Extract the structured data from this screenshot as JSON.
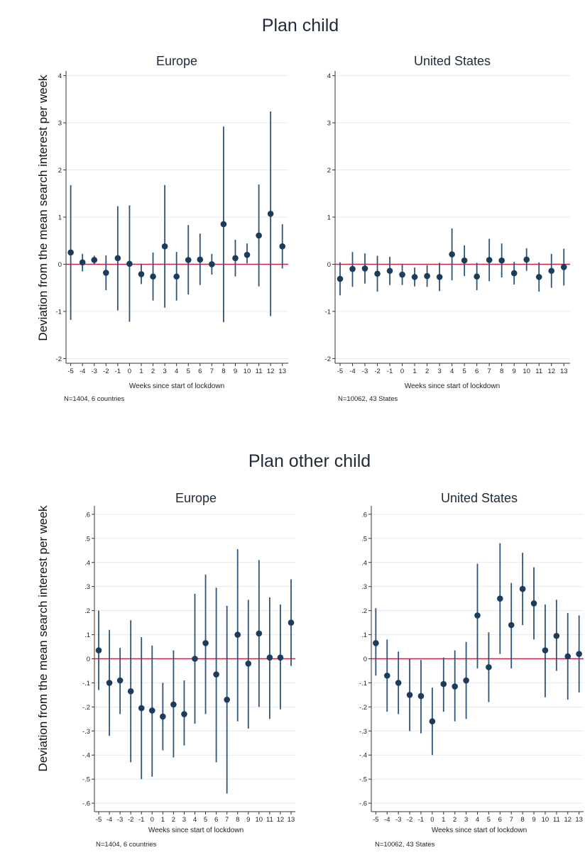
{
  "figure": {
    "sections": [
      {
        "title": "Plan child",
        "ylabel": "Deviation from the mean search interest per week"
      },
      {
        "title": "Plan other child",
        "ylabel": "Deviation from the mean search interest per week"
      }
    ]
  },
  "colors": {
    "marker": "#1c3c5c",
    "ci": "#2e5478",
    "zero_line": "#c0284a",
    "grid": "#e4e9ef",
    "axis": "#333333"
  },
  "chart_data": [
    {
      "type": "scatter",
      "section": 0,
      "title": "Europe",
      "xlabel": "Weeks since start of lockdown",
      "ylabel": "Deviation from the mean search interest per week",
      "note": "N=1404, 6 countries",
      "x": [
        -5,
        -4,
        -3,
        -2,
        -1,
        0,
        1,
        2,
        3,
        4,
        5,
        6,
        7,
        8,
        9,
        10,
        11,
        12,
        13
      ],
      "estimate": [
        0.25,
        0.04,
        0.09,
        -0.18,
        0.13,
        0.01,
        -0.21,
        -0.26,
        0.38,
        -0.26,
        0.09,
        0.1,
        0.0,
        0.85,
        0.13,
        0.2,
        0.61,
        1.07,
        0.38
      ],
      "ci_low": [
        -1.18,
        -0.15,
        -0.01,
        -0.55,
        -0.98,
        -1.22,
        -0.42,
        -0.77,
        -0.92,
        -0.77,
        -0.64,
        -0.44,
        -0.22,
        -1.23,
        -0.26,
        0.02,
        -0.47,
        -1.1,
        -0.09
      ],
      "ci_high": [
        1.68,
        0.22,
        0.18,
        0.19,
        1.23,
        1.25,
        0.01,
        0.25,
        1.68,
        0.26,
        0.83,
        0.65,
        0.22,
        2.92,
        0.52,
        0.44,
        1.69,
        3.24,
        0.85
      ],
      "yticks": [
        -2,
        -1,
        0,
        1,
        2,
        3,
        4
      ],
      "ytick_labels": [
        "-2",
        "-1",
        "0",
        "1",
        "2",
        "3",
        "4"
      ],
      "xtick_labels": [
        "-5",
        "-4",
        "-3",
        "-2",
        "-1",
        "0",
        "1",
        "2",
        "3",
        "4",
        "5",
        "6",
        "7",
        "8",
        "9",
        "10",
        "11",
        "12",
        "13"
      ],
      "ylim": [
        -2.1,
        4.1
      ],
      "xlim": [
        -5.4,
        13.5
      ],
      "grid": true,
      "reference_line": 0
    },
    {
      "type": "scatter",
      "section": 0,
      "title": "United States",
      "xlabel": "Weeks since start of lockdown",
      "ylabel": "",
      "note": "N=10062, 43 States",
      "x": [
        -5,
        -4,
        -3,
        -2,
        -1,
        0,
        1,
        2,
        3,
        4,
        5,
        6,
        7,
        8,
        9,
        10,
        11,
        12,
        13
      ],
      "estimate": [
        -0.31,
        -0.1,
        -0.09,
        -0.2,
        -0.14,
        -0.22,
        -0.27,
        -0.25,
        -0.27,
        0.21,
        0.08,
        -0.26,
        0.09,
        0.08,
        -0.19,
        0.1,
        -0.27,
        -0.14,
        -0.06
      ],
      "ci_low": [
        -0.66,
        -0.48,
        -0.41,
        -0.58,
        -0.44,
        -0.44,
        -0.47,
        -0.48,
        -0.57,
        -0.34,
        -0.25,
        -0.55,
        -0.36,
        -0.28,
        -0.43,
        -0.14,
        -0.58,
        -0.5,
        -0.45
      ],
      "ci_high": [
        0.04,
        0.26,
        0.23,
        0.18,
        0.16,
        0.0,
        -0.07,
        -0.02,
        0.03,
        0.76,
        0.4,
        0.03,
        0.54,
        0.44,
        0.05,
        0.34,
        0.04,
        0.22,
        0.33
      ],
      "yticks": [
        -2,
        -1,
        0,
        1,
        2,
        3,
        4
      ],
      "ytick_labels": [
        "-2",
        "-1",
        "0",
        "1",
        "2",
        "3",
        "4"
      ],
      "xtick_labels": [
        "-5",
        "-4",
        "-3",
        "-2",
        "-1",
        "0",
        "1",
        "2",
        "3",
        "4",
        "5",
        "6",
        "7",
        "8",
        "9",
        "10",
        "11",
        "12",
        "13"
      ],
      "ylim": [
        -2.1,
        4.1
      ],
      "xlim": [
        -5.4,
        13.5
      ],
      "grid": true,
      "reference_line": 0
    },
    {
      "type": "scatter",
      "section": 1,
      "title": "Europe",
      "xlabel": "Weeks since start of lockdown",
      "ylabel": "Deviation from the mean search interest per week",
      "note": "N=1404, 6 countries",
      "x": [
        -5,
        -4,
        -3,
        -2,
        -1,
        0,
        1,
        2,
        3,
        4,
        5,
        6,
        7,
        8,
        9,
        10,
        11,
        12,
        13
      ],
      "estimate": [
        0.035,
        -0.1,
        -0.09,
        -0.135,
        -0.205,
        -0.215,
        -0.24,
        -0.19,
        -0.23,
        0.0,
        0.065,
        -0.065,
        -0.17,
        0.1,
        -0.02,
        0.105,
        0.005,
        0.005,
        0.15
      ],
      "ci_low": [
        -0.13,
        -0.32,
        -0.23,
        -0.43,
        -0.5,
        -0.49,
        -0.38,
        -0.41,
        -0.36,
        -0.27,
        -0.23,
        -0.43,
        -0.56,
        -0.26,
        -0.29,
        -0.2,
        -0.25,
        -0.21,
        -0.03
      ],
      "ci_high": [
        0.2,
        0.12,
        0.045,
        0.16,
        0.09,
        0.055,
        -0.1,
        0.035,
        -0.09,
        0.27,
        0.35,
        0.295,
        0.22,
        0.455,
        0.245,
        0.41,
        0.255,
        0.225,
        0.33
      ],
      "yticks": [
        -0.6,
        -0.5,
        -0.4,
        -0.3,
        -0.2,
        -0.1,
        0,
        0.1,
        0.2,
        0.3,
        0.4,
        0.5,
        0.6
      ],
      "ytick_labels": [
        "-.6",
        "-.5",
        "-.4",
        "-.3",
        "-.2",
        "-.1",
        "0",
        ".1",
        ".2",
        ".3",
        ".4",
        ".5",
        ".6"
      ],
      "xtick_labels": [
        "-5",
        "-4",
        "-3",
        "-2",
        "-1",
        "0",
        "1",
        "2",
        "3",
        "4",
        "5",
        "6",
        "7",
        "8",
        "9",
        "10",
        "11",
        "12",
        "13"
      ],
      "ylim": [
        -0.635,
        0.635
      ],
      "xlim": [
        -5.4,
        13.4
      ],
      "grid": true,
      "reference_line": 0
    },
    {
      "type": "scatter",
      "section": 1,
      "title": "United States",
      "xlabel": "Weeks since start of lockdown",
      "ylabel": "",
      "note": "N=10062, 43 States",
      "x": [
        -5,
        -4,
        -3,
        -2,
        -1,
        0,
        1,
        2,
        3,
        4,
        5,
        6,
        7,
        8,
        9,
        10,
        11,
        12,
        13
      ],
      "estimate": [
        0.065,
        -0.07,
        -0.1,
        -0.15,
        -0.155,
        -0.26,
        -0.105,
        -0.115,
        -0.09,
        0.18,
        -0.035,
        0.25,
        0.14,
        0.29,
        0.23,
        0.035,
        0.095,
        0.01,
        0.02
      ],
      "ci_low": [
        -0.07,
        -0.22,
        -0.23,
        -0.3,
        -0.31,
        -0.4,
        -0.22,
        -0.26,
        -0.25,
        -0.04,
        -0.18,
        0.02,
        -0.04,
        0.14,
        0.08,
        -0.16,
        -0.05,
        -0.17,
        -0.14
      ],
      "ci_high": [
        0.21,
        0.08,
        0.03,
        0.0,
        -0.005,
        -0.12,
        0.005,
        0.035,
        0.07,
        0.395,
        0.11,
        0.48,
        0.315,
        0.44,
        0.38,
        0.225,
        0.245,
        0.19,
        0.18
      ],
      "yticks": [
        -0.6,
        -0.5,
        -0.4,
        -0.3,
        -0.2,
        -0.1,
        0,
        0.1,
        0.2,
        0.3,
        0.4,
        0.5,
        0.6
      ],
      "ytick_labels": [
        "-.6",
        "-.5",
        "-.4",
        "-.3",
        "-.2",
        "-.1",
        "0",
        ".1",
        ".2",
        ".3",
        ".4",
        ".5",
        ".6"
      ],
      "xtick_labels": [
        "-5",
        "-4",
        "-3",
        "-2",
        "-1",
        "0",
        "1",
        "2",
        "3",
        "4",
        "5",
        "6",
        "7",
        "8",
        "9",
        "10",
        "11",
        "12",
        "13"
      ],
      "ylim": [
        -0.635,
        0.635
      ],
      "xlim": [
        -5.4,
        13.4
      ],
      "grid": true,
      "reference_line": 0
    }
  ]
}
